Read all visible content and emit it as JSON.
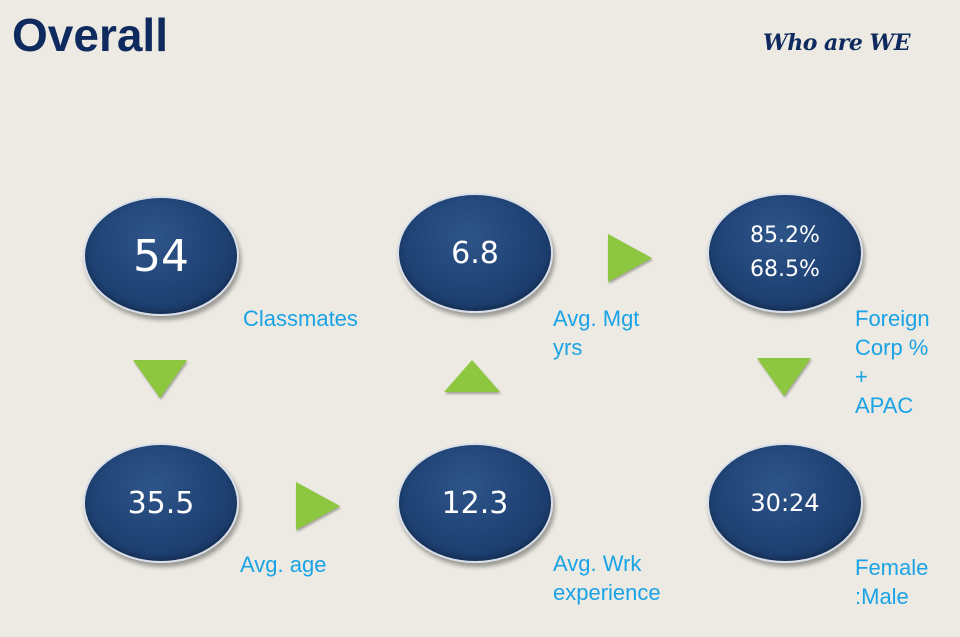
{
  "title": "Overall",
  "tagline": "Who are WE",
  "stats": {
    "classmates": {
      "value": "54",
      "label": "Classmates"
    },
    "mgt_yrs": {
      "value": "6.8",
      "label_line1": "Avg. Mgt",
      "label_line2": "yrs"
    },
    "foreign": {
      "value_line1": "85.2%",
      "value_line2": "68.5%",
      "label_line1": "Foreign",
      "label_line2": "Corp %",
      "label_line3": "+",
      "label_line4": "APAC"
    },
    "age": {
      "value": "35.5",
      "label": "Avg. age"
    },
    "work_exp": {
      "value": "12.3",
      "label_line1": "Avg. Wrk",
      "label_line2": "experience"
    },
    "gender": {
      "value": "30:24",
      "label_line1": "Female",
      "label_line2": ":Male"
    }
  },
  "colors": {
    "circle": "#1f4274",
    "label": "#1aa3e6",
    "arrow": "#8dc63f",
    "title": "#0f2a5e"
  },
  "icons": [
    "arrow-down-icon",
    "arrow-right-icon",
    "arrow-up-icon"
  ]
}
